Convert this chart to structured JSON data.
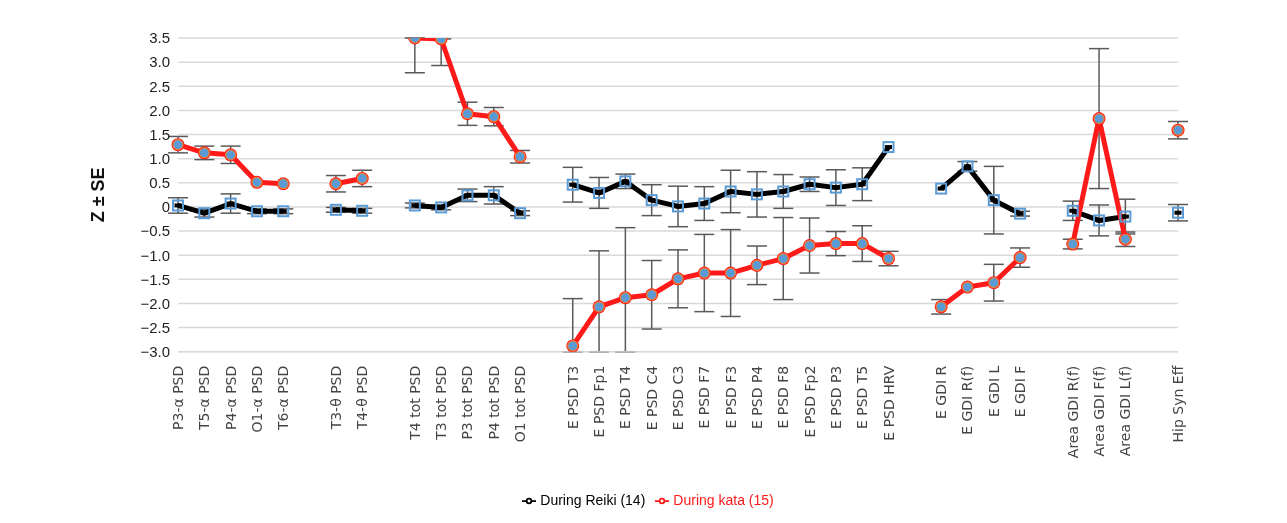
{
  "chart_data": {
    "type": "line",
    "ylabel": "Z ± SE",
    "categories": [
      "P3-α PSD",
      "T5-α PSD",
      "P4-α PSD",
      "O1-α PSD",
      "T6-α PSD",
      null,
      "T3-θ PSD",
      "T4-θ PSD",
      null,
      "T4 tot PSD",
      "T3 tot PSD",
      "P3 tot PSD",
      "P4 tot PSD",
      "O1 tot PSD",
      null,
      "E PSD T3",
      "E PSD Fp1",
      "E PSD T4",
      "E PSD C4",
      "E PSD C3",
      "E PSD F7",
      "E PSD F3",
      "E PSD P4",
      "E PSD F8",
      "E PSD Fp2",
      "E PSD P3",
      "E PSD T5",
      "E PSD HRV",
      null,
      "E GDI R",
      "E GDI R(f)",
      "E GDI L",
      "E GDI F",
      null,
      "Area GDI R(f)",
      "Area GDI F(f)",
      "Area GDI L(f)",
      null,
      "Hip Syn Eff"
    ],
    "series": [
      {
        "name": "During Reiki (14)",
        "color": "#000000",
        "marker": "square",
        "values": [
          0.03,
          -0.13,
          0.07,
          -0.09,
          -0.09,
          null,
          -0.06,
          -0.08,
          null,
          0.03,
          -0.01,
          0.24,
          0.24,
          -0.13,
          null,
          0.46,
          0.29,
          0.53,
          0.14,
          0.01,
          0.07,
          0.32,
          0.26,
          0.32,
          0.47,
          0.4,
          0.47,
          1.24,
          null,
          0.38,
          0.84,
          0.14,
          -0.14,
          null,
          -0.08,
          -0.28,
          -0.2,
          null,
          -0.12
        ],
        "errors": [
          0.16,
          0.08,
          0.2,
          0.05,
          0.05,
          null,
          0.05,
          0.05,
          null,
          0.05,
          0.05,
          0.13,
          0.18,
          0.05,
          null,
          0.36,
          0.32,
          0.15,
          0.32,
          0.42,
          0.35,
          0.44,
          0.47,
          0.35,
          0.15,
          0.37,
          0.34,
          null,
          null,
          null,
          0.1,
          0.7,
          0.05,
          null,
          0.2,
          0.32,
          0.36,
          null,
          0.17
        ]
      },
      {
        "name": "During kata (15)",
        "color": "#ff1a1a",
        "marker": "circle",
        "values": [
          1.29,
          1.12,
          1.08,
          0.51,
          0.48,
          null,
          0.48,
          0.59,
          null,
          3.5,
          3.48,
          1.93,
          1.87,
          1.04,
          null,
          -2.88,
          -2.07,
          -1.88,
          -1.82,
          -1.49,
          -1.37,
          -1.37,
          -1.21,
          -1.07,
          -0.8,
          -0.76,
          -0.76,
          -1.07,
          null,
          -2.07,
          -1.66,
          -1.57,
          -1.05,
          null,
          -0.77,
          1.83,
          -0.67,
          null,
          1.59
        ],
        "errors": [
          0.17,
          0.14,
          0.18,
          null,
          null,
          null,
          0.17,
          0.17,
          null,
          [
            2.78,
            3.5
          ],
          [
            2.93,
            3.48
          ],
          0.24,
          0.19,
          0.13,
          null,
          [
            -3.0,
            -1.9
          ],
          [
            -3.0,
            -0.91
          ],
          [
            -3.0,
            -0.43
          ],
          0.71,
          0.6,
          0.8,
          0.9,
          0.4,
          0.85,
          0.57,
          0.25,
          0.37,
          0.15,
          null,
          0.15,
          null,
          0.38,
          0.2,
          null,
          0.1,
          1.45,
          0.15,
          null,
          0.18
        ]
      }
    ],
    "ylim": [
      -3.0,
      3.5
    ],
    "yticks": [
      {
        "value": -3,
        "label": "−3.0"
      },
      {
        "value": -2.5,
        "label": "−2.5"
      },
      {
        "value": -2,
        "label": "−2.0"
      },
      {
        "value": -1.5,
        "label": "−1.5"
      },
      {
        "value": -1,
        "label": "−1.0"
      },
      {
        "value": -0.5,
        "label": "−0.5"
      },
      0,
      0.5,
      {
        "value": 1,
        "label": "1.0"
      },
      1.5,
      {
        "value": 2,
        "label": "2.0"
      },
      2.5,
      {
        "value": 3,
        "label": "3.0"
      },
      3.5
    ],
    "grid": "y",
    "legend": "bottom"
  }
}
